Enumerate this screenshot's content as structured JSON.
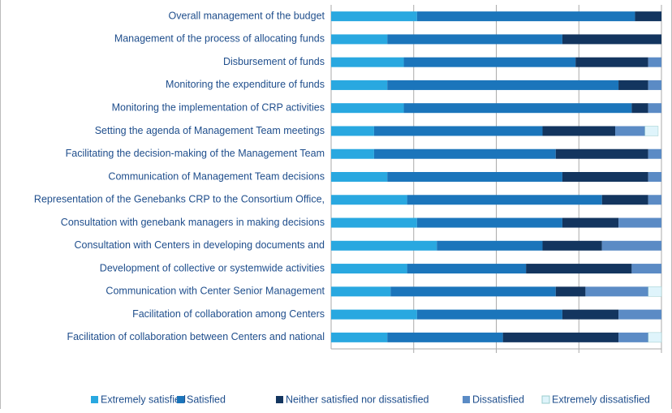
{
  "chart_data": {
    "type": "stacked_bar_horizontal",
    "categories": [
      "Overall management of the budget",
      "Management of the process of allocating funds",
      "Disbursement of funds",
      "Monitoring the expenditure of funds",
      "Monitoring the implementation of CRP activities",
      "Setting the agenda of Management Team meetings",
      "Facilitating the decision-making of the Management Team",
      "Communication of Management Team decisions",
      "Representation of the Genebanks CRP to the Consortium Office,",
      "Consultation with genebank managers in making decisions",
      "Consultation with Centers in developing documents and",
      "Development of collective or systemwide activities",
      "Communication with Center Senior Management",
      "Facilitation of collaboration among Centers",
      "Facilitation of collaboration between Centers and national"
    ],
    "series": [
      {
        "name": "Extremely satisfied",
        "color": "#29a8e0",
        "values": [
          26,
          17,
          22,
          17,
          22,
          13,
          13,
          17,
          23,
          26,
          32,
          23,
          18,
          26,
          17
        ]
      },
      {
        "name": "Satisfied",
        "color": "#1b75bb",
        "values": [
          66,
          53,
          52,
          70,
          69,
          51,
          55,
          53,
          59,
          44,
          32,
          36,
          50,
          44,
          35
        ]
      },
      {
        "name": "Neither satisfied nor dissatisfied",
        "color": "#13355f",
        "values": [
          8,
          30,
          22,
          9,
          5,
          22,
          28,
          26,
          14,
          17,
          18,
          32,
          9,
          17,
          35
        ]
      },
      {
        "name": "Dissatisfied",
        "color": "#5b8bc5",
        "values": [
          0,
          0,
          4,
          4,
          4,
          9,
          4,
          4,
          4,
          13,
          18,
          9,
          19,
          13,
          9
        ]
      },
      {
        "name": "Extremely dissatisfied",
        "color": "#dff4fb",
        "values": [
          0,
          0,
          0,
          0,
          0,
          4,
          0,
          0,
          0,
          0,
          0,
          0,
          4,
          0,
          4
        ]
      }
    ],
    "xlim": [
      0,
      100
    ],
    "xticks": [
      0,
      25,
      50,
      75,
      100
    ],
    "grid": true,
    "legend": "bottom"
  }
}
